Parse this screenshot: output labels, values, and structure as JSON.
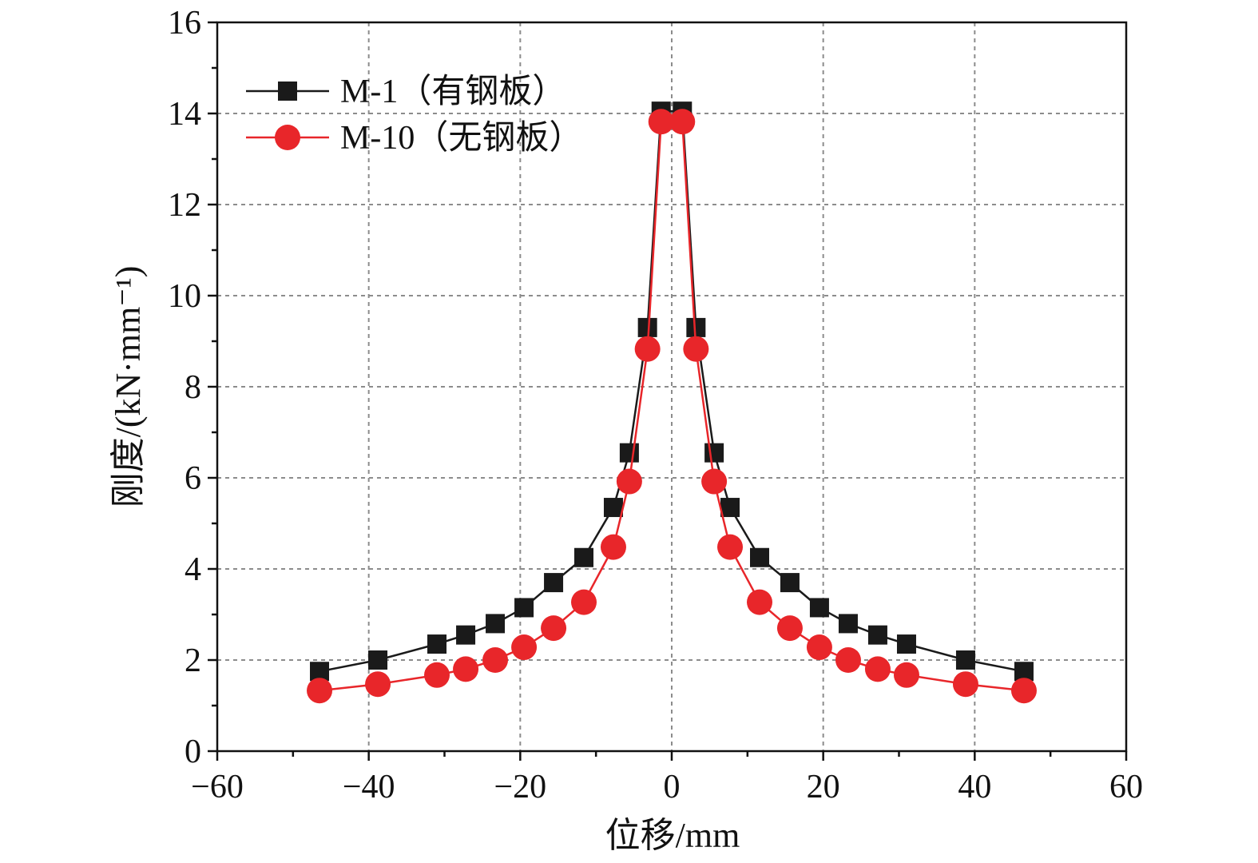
{
  "chart_data": {
    "type": "line",
    "xlabel": "位移/mm",
    "ylabel": "刚度/(kN·mm⁻¹)",
    "xlim": [
      -60,
      60
    ],
    "ylim": [
      0,
      16
    ],
    "xticks": [
      -60,
      -40,
      -20,
      0,
      20,
      40,
      60
    ],
    "xtick_labels": [
      "−60",
      "−40",
      "−20",
      "0",
      "20",
      "40",
      "60"
    ],
    "yticks": [
      0,
      2,
      4,
      6,
      8,
      10,
      12,
      14,
      16
    ],
    "ytick_labels": [
      "0",
      "2",
      "4",
      "6",
      "8",
      "10",
      "12",
      "14",
      "16"
    ],
    "grid": true,
    "legend_position": "top-left",
    "series": [
      {
        "name": "M-1（有钢板）",
        "color": "#1a1a1a",
        "marker": "square",
        "x": [
          -46.5,
          -38.8,
          -31.0,
          -27.2,
          -23.3,
          -19.5,
          -15.6,
          -11.6,
          -7.7,
          -5.6,
          -3.2,
          -1.4,
          1.4,
          3.2,
          5.6,
          7.7,
          11.6,
          15.6,
          19.5,
          23.3,
          27.2,
          31.0,
          38.8,
          46.5
        ],
        "y": [
          1.75,
          2.0,
          2.35,
          2.55,
          2.8,
          3.15,
          3.7,
          4.25,
          5.35,
          6.55,
          9.3,
          14.05,
          14.05,
          9.3,
          6.55,
          5.35,
          4.25,
          3.7,
          3.15,
          2.8,
          2.55,
          2.35,
          2.0,
          1.75
        ]
      },
      {
        "name": "M-10（无钢板）",
        "color": "#e8262a",
        "marker": "circle",
        "x": [
          -46.5,
          -38.8,
          -31.0,
          -27.2,
          -23.3,
          -19.5,
          -15.6,
          -11.6,
          -7.7,
          -5.6,
          -3.2,
          -1.4,
          1.4,
          3.2,
          5.6,
          7.7,
          11.6,
          15.6,
          19.5,
          23.3,
          27.2,
          31.0,
          38.8,
          46.5
        ],
        "y": [
          1.33,
          1.47,
          1.67,
          1.8,
          2.0,
          2.28,
          2.7,
          3.27,
          4.48,
          5.92,
          8.83,
          13.82,
          13.82,
          8.83,
          5.92,
          4.48,
          3.27,
          2.7,
          2.28,
          2.0,
          1.8,
          1.67,
          1.47,
          1.33
        ]
      }
    ]
  }
}
